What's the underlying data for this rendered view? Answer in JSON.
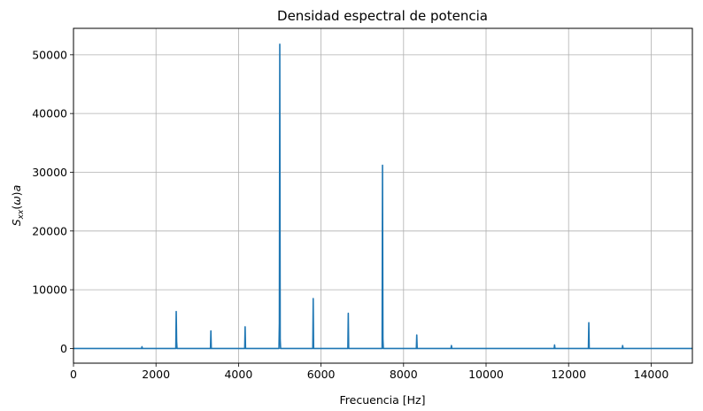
{
  "chart_data": {
    "type": "line",
    "title": "Densidad espectral de potencia",
    "xlabel": "Frecuencia [Hz]",
    "ylabel": "S_xx(ω)a",
    "xlim": [
      0,
      15000
    ],
    "ylim": [
      -2500,
      54500
    ],
    "xticks": [
      0,
      2000,
      4000,
      6000,
      8000,
      10000,
      12000,
      14000
    ],
    "yticks": [
      0,
      10000,
      20000,
      30000,
      40000,
      50000
    ],
    "grid": true,
    "series": [
      {
        "color": "#1f77b4",
        "x": [
          0,
          1650,
          1660,
          1670,
          2480,
          2490,
          2500,
          2510,
          3320,
          3330,
          3340,
          4150,
          4160,
          4170,
          4980,
          4990,
          5000,
          5010,
          5020,
          5800,
          5810,
          5820,
          6650,
          6660,
          6670,
          7480,
          7490,
          7500,
          7510,
          8310,
          8320,
          8330,
          9150,
          9160,
          9170,
          11650,
          11660,
          11670,
          12480,
          12490,
          12500,
          13300,
          13310,
          13320,
          15000
        ],
        "y": [
          0,
          0,
          300,
          0,
          0,
          6300,
          1200,
          0,
          0,
          3000,
          0,
          0,
          3700,
          0,
          0,
          4300,
          51800,
          1500,
          0,
          0,
          8500,
          0,
          0,
          6000,
          0,
          0,
          31200,
          1600,
          0,
          0,
          2300,
          0,
          0,
          500,
          0,
          0,
          600,
          0,
          0,
          4400,
          0,
          0,
          500,
          0,
          0
        ]
      }
    ]
  }
}
